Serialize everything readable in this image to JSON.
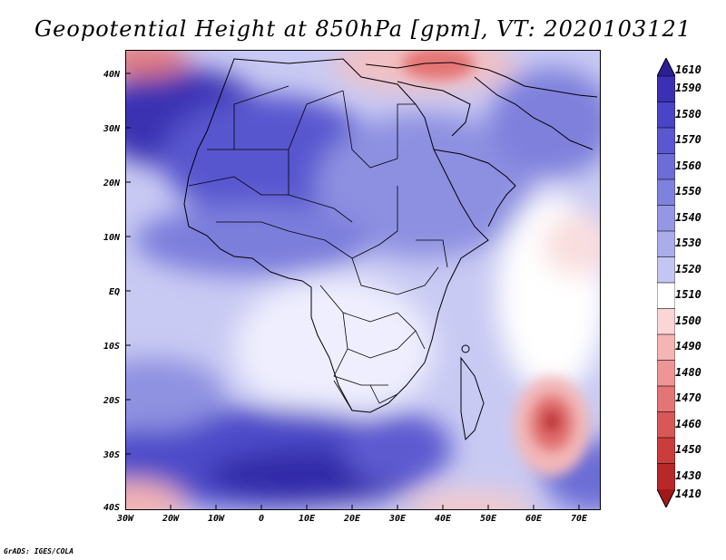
{
  "title": "Geopotential Height at 850hPa [gpm], VT: 2020103121",
  "axes": {
    "lat_labels": [
      "40N",
      "30N",
      "20N",
      "10N",
      "EQ",
      "10S",
      "20S",
      "30S",
      "40S"
    ],
    "lon_labels": [
      "30W",
      "20W",
      "10W",
      "0",
      "10E",
      "20E",
      "30E",
      "40E",
      "50E",
      "60E",
      "70E"
    ]
  },
  "colorbar": {
    "labels": [
      "1610",
      "1590",
      "1580",
      "1570",
      "1560",
      "1550",
      "1540",
      "1530",
      "1520",
      "1510",
      "1500",
      "1490",
      "1480",
      "1470",
      "1460",
      "1450",
      "1430",
      "1410"
    ],
    "colors": [
      "#2c1f96",
      "#3b30b4",
      "#4a44c6",
      "#5b58cf",
      "#6c6dd6",
      "#7f82dd",
      "#9597e4",
      "#abadeb",
      "#c3c6f2",
      "#ffffff",
      "#fbd6d6",
      "#f5b5b5",
      "#ee9595",
      "#e47575",
      "#d85757",
      "#cb3d3d",
      "#b82828",
      "#a21818"
    ]
  },
  "credit": "GrADS: IGES/COLA"
}
